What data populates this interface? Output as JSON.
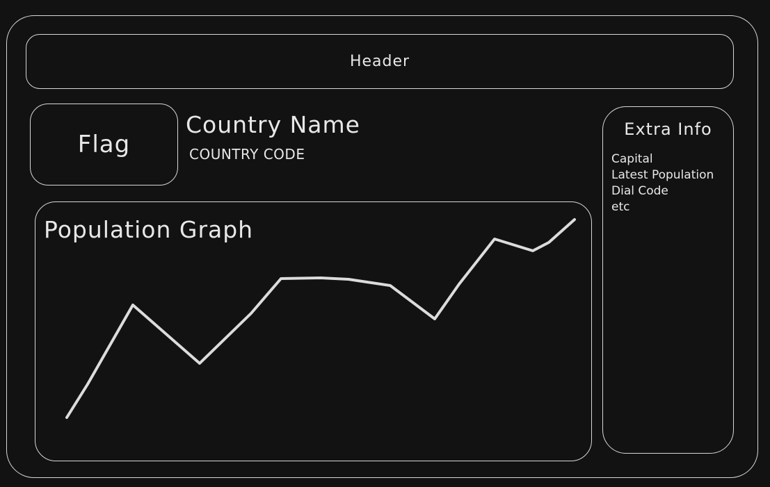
{
  "header": {
    "label": "Header"
  },
  "flag": {
    "label": "Flag"
  },
  "country": {
    "name": "Country Name",
    "code": "COUNTRY CODE"
  },
  "graph": {
    "title": "Population Graph",
    "stroke": "#dcdcdc"
  },
  "extra": {
    "title": "Extra Info",
    "items": [
      "Capital",
      "Latest Population",
      "Dial Code",
      "etc"
    ]
  },
  "colors": {
    "background": "#121212",
    "border": "#d8d8d8",
    "text": "#e8e8e8"
  }
}
